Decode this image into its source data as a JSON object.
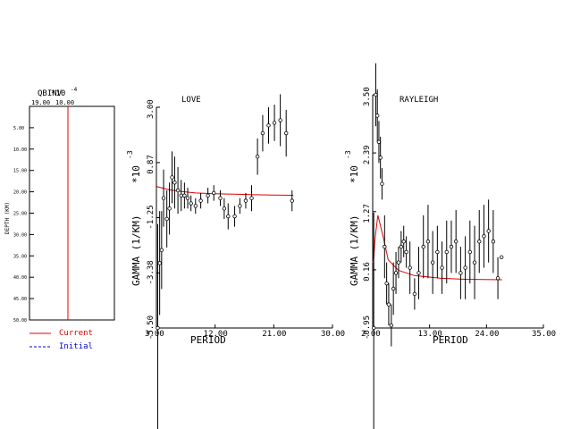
{
  "chart_data": [
    {
      "type": "line",
      "title": "QBINV",
      "exponent_label": "*10",
      "exponent_power": "-4",
      "top_ticks": [
        "19.00",
        "10.00"
      ],
      "ylabel": "DEPTH (KM)",
      "y_ticks": [
        "5.00",
        "10.00",
        "15.00",
        "20.00",
        "25.00",
        "30.00",
        "35.00",
        "40.00",
        "45.00",
        "50.00"
      ],
      "ylim": [
        0,
        50
      ],
      "series": [
        {
          "name": "Current",
          "color": "#e00000",
          "x": [
            10,
            10
          ],
          "depth": [
            0,
            50
          ]
        },
        {
          "name": "Initial",
          "color": "#0000dd",
          "x": [
            10,
            10
          ],
          "depth": [
            0,
            50
          ]
        }
      ]
    },
    {
      "type": "scatter",
      "title": "LOVE",
      "xlabel": "PERIOD",
      "ylabel": "GAMMA (1/KM)",
      "ylabel_exp": "*10",
      "ylabel_power": "-3",
      "xlim": [
        3,
        30
      ],
      "ylim": [
        -5.5,
        3.0
      ],
      "x_ticks": [
        "3.00",
        "12.00",
        "21.00",
        "30.00"
      ],
      "y_ticks": [
        "-5.50",
        "-3.38",
        "-1.25",
        "0.87",
        "3.00"
      ],
      "points": [
        {
          "x": 3.2,
          "y": -5.5,
          "err": 4.0
        },
        {
          "x": 3.5,
          "y": -3.0,
          "err": 2.0
        },
        {
          "x": 3.8,
          "y": -2.5,
          "err": 1.5
        },
        {
          "x": 4.1,
          "y": -0.5,
          "err": 1.1
        },
        {
          "x": 4.6,
          "y": -1.3,
          "err": 1.1
        },
        {
          "x": 5.0,
          "y": -0.9,
          "err": 1.0
        },
        {
          "x": 5.4,
          "y": 0.3,
          "err": 1.0
        },
        {
          "x": 5.8,
          "y": 0.1,
          "err": 1.0
        },
        {
          "x": 6.3,
          "y": -0.2,
          "err": 0.9
        },
        {
          "x": 6.8,
          "y": -0.4,
          "err": 0.6
        },
        {
          "x": 7.3,
          "y": -0.4,
          "err": 0.5
        },
        {
          "x": 7.8,
          "y": -0.5,
          "err": 0.4
        },
        {
          "x": 8.3,
          "y": -0.7,
          "err": 0.3
        },
        {
          "x": 9.0,
          "y": -0.8,
          "err": 0.3
        },
        {
          "x": 9.8,
          "y": -0.6,
          "err": 0.3
        },
        {
          "x": 10.9,
          "y": -0.4,
          "err": 0.3
        },
        {
          "x": 11.8,
          "y": -0.3,
          "err": 0.3
        },
        {
          "x": 12.8,
          "y": -0.5,
          "err": 0.3
        },
        {
          "x": 13.4,
          "y": -0.9,
          "err": 0.4
        },
        {
          "x": 14.0,
          "y": -1.2,
          "err": 0.5
        },
        {
          "x": 15.0,
          "y": -1.2,
          "err": 0.4
        },
        {
          "x": 15.8,
          "y": -0.8,
          "err": 0.3
        },
        {
          "x": 16.7,
          "y": -0.6,
          "err": 0.3
        },
        {
          "x": 17.6,
          "y": -0.5,
          "err": 0.5
        },
        {
          "x": 18.5,
          "y": 1.1,
          "err": 0.7
        },
        {
          "x": 19.3,
          "y": 2.0,
          "err": 0.7
        },
        {
          "x": 20.2,
          "y": 2.3,
          "err": 0.7
        },
        {
          "x": 21.1,
          "y": 2.4,
          "err": 0.7
        },
        {
          "x": 22.0,
          "y": 2.5,
          "err": 1.0
        },
        {
          "x": 22.9,
          "y": 2.0,
          "err": 0.9
        },
        {
          "x": 23.8,
          "y": -0.6,
          "err": 0.4
        }
      ],
      "model_curve": {
        "name": "Current",
        "color": "#e00000",
        "x": [
          3.0,
          5,
          7,
          9,
          12,
          15,
          18,
          21,
          24
        ],
        "y": [
          -0.05,
          -0.18,
          -0.25,
          -0.3,
          -0.33,
          -0.35,
          -0.37,
          -0.38,
          -0.39
        ]
      }
    },
    {
      "type": "scatter",
      "title": "RAYLEIGH",
      "xlabel": "PERIOD",
      "ylabel": "GAMMA (1/KM)",
      "ylabel_exp": "*10",
      "ylabel_power": "-3",
      "xlim": [
        2,
        35
      ],
      "ylim": [
        -0.95,
        3.5
      ],
      "x_ticks": [
        "2.00",
        "13.00",
        "24.00",
        "35.00"
      ],
      "y_ticks": [
        "-0.95",
        "0.16",
        "1.27",
        "2.39",
        "3.50"
      ],
      "points": [
        {
          "x": 2.2,
          "y": -0.95,
          "err": 2.2
        },
        {
          "x": 2.6,
          "y": 3.5,
          "err": 0.6
        },
        {
          "x": 2.9,
          "y": 3.1,
          "err": 0.5
        },
        {
          "x": 3.2,
          "y": 2.6,
          "err": 0.4
        },
        {
          "x": 3.5,
          "y": 2.3,
          "err": 0.4
        },
        {
          "x": 3.8,
          "y": 1.8,
          "err": 0.3
        },
        {
          "x": 4.3,
          "y": 0.6,
          "err": 0.6
        },
        {
          "x": 4.7,
          "y": -0.1,
          "err": 0.4
        },
        {
          "x": 5.1,
          "y": -0.5,
          "err": 0.4
        },
        {
          "x": 5.6,
          "y": -0.9,
          "err": 0.4
        },
        {
          "x": 6.0,
          "y": -0.2,
          "err": 0.5
        },
        {
          "x": 6.5,
          "y": 0.1,
          "err": 0.4
        },
        {
          "x": 7.0,
          "y": 0.3,
          "err": 0.3
        },
        {
          "x": 7.5,
          "y": 0.6,
          "err": 0.3
        },
        {
          "x": 8.0,
          "y": 0.7,
          "err": 0.3
        },
        {
          "x": 8.5,
          "y": 0.5,
          "err": 0.3
        },
        {
          "x": 9.2,
          "y": 0.2,
          "err": 0.5
        },
        {
          "x": 10.1,
          "y": -0.3,
          "err": 0.3
        },
        {
          "x": 10.9,
          "y": 0.1,
          "err": 0.5
        },
        {
          "x": 11.8,
          "y": 0.6,
          "err": 0.6
        },
        {
          "x": 12.7,
          "y": 0.7,
          "err": 0.7
        },
        {
          "x": 13.6,
          "y": 0.3,
          "err": 0.6
        },
        {
          "x": 14.5,
          "y": 0.5,
          "err": 0.5
        },
        {
          "x": 15.4,
          "y": 0.2,
          "err": 0.5
        },
        {
          "x": 16.3,
          "y": 0.5,
          "err": 0.6
        },
        {
          "x": 17.2,
          "y": 0.6,
          "err": 0.5
        },
        {
          "x": 18.1,
          "y": 0.7,
          "err": 0.6
        },
        {
          "x": 19.0,
          "y": 0.1,
          "err": 0.5
        },
        {
          "x": 19.9,
          "y": 0.2,
          "err": 0.6
        },
        {
          "x": 20.8,
          "y": 0.5,
          "err": 0.6
        },
        {
          "x": 21.7,
          "y": 0.3,
          "err": 0.7
        },
        {
          "x": 22.6,
          "y": 0.7,
          "err": 0.6
        },
        {
          "x": 23.5,
          "y": 0.8,
          "err": 0.6
        },
        {
          "x": 24.4,
          "y": 0.9,
          "err": 0.6
        },
        {
          "x": 25.3,
          "y": 0.7,
          "err": 0.6
        },
        {
          "x": 26.2,
          "y": 0.0,
          "err": 0.4
        },
        {
          "x": 26.9,
          "y": 0.4,
          "err": 0.0
        }
      ],
      "model_curve": {
        "name": "Current",
        "color": "#e00000",
        "x": [
          2.0,
          2.2,
          2.5,
          3,
          4,
          5,
          7,
          10,
          15,
          20,
          27
        ],
        "y": [
          0.3,
          0.4,
          0.8,
          1.2,
          0.8,
          0.35,
          0.15,
          0.05,
          0.0,
          -0.02,
          -0.03
        ]
      }
    }
  ],
  "legend": [
    {
      "label": "Current",
      "color": "#e00000"
    },
    {
      "label": "Initial",
      "color": "#0000dd"
    }
  ]
}
